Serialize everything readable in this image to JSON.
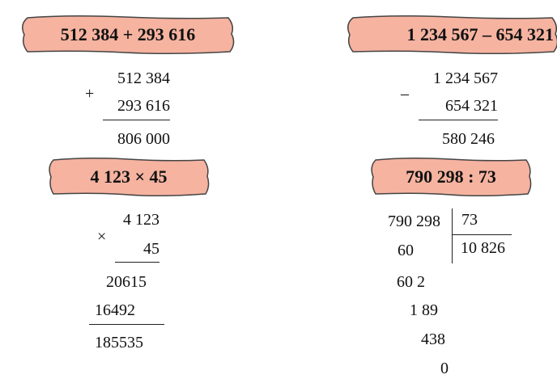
{
  "banners": {
    "addition": "512 384 + 293 616",
    "subtraction": "1 234 567 – 654 321",
    "multiplication": "4 123 × 45",
    "division": "790 298 : 73"
  },
  "addition": {
    "operator": "+",
    "operand1": "512 384",
    "operand2": "293 616",
    "result": "806 000"
  },
  "subtraction": {
    "operator": "–",
    "operand1": "1 234 567",
    "operand2": "654 321",
    "result": "580 246"
  },
  "multiplication": {
    "operator": "×",
    "operand1": "4 123",
    "operand2": "45",
    "partial1": "20615",
    "partial2": "16492",
    "result": "185535"
  },
  "division": {
    "dividend": "790 298",
    "divisor": "73",
    "quotient": "10 826",
    "steps": [
      "60",
      "60 2",
      "1 89",
      "438",
      "0"
    ]
  },
  "colors": {
    "banner_fill": "#f5b3a0",
    "banner_stroke": "#444444"
  }
}
